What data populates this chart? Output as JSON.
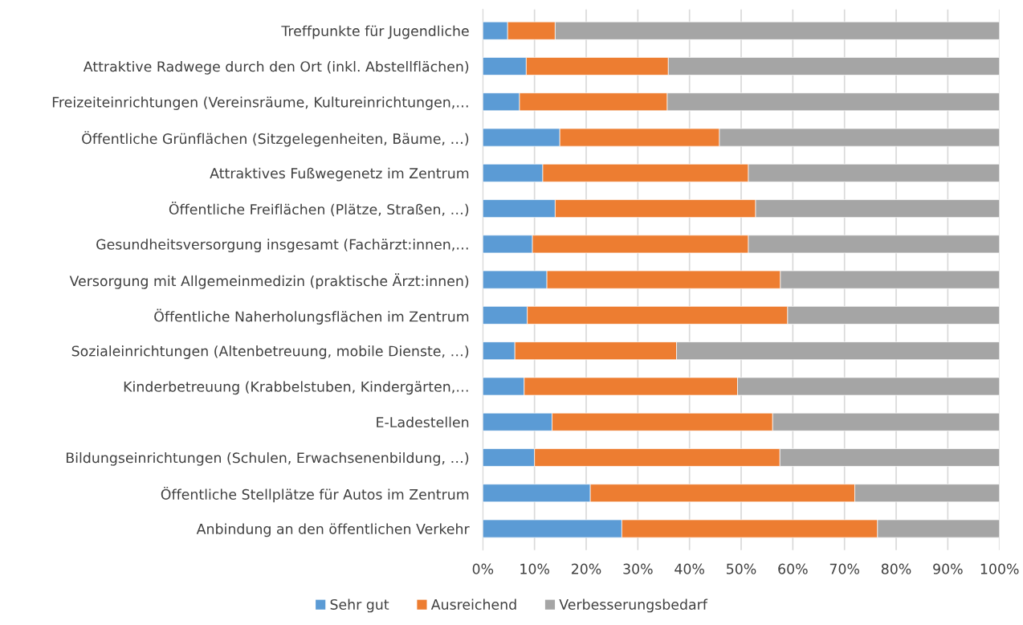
{
  "chart_data": {
    "type": "bar",
    "orientation": "horizontal",
    "stacked": true,
    "categories": [
      "Treffpunkte für Jugendliche",
      "Attraktive Radwege durch den Ort (inkl. Abstellflächen)",
      "Freizeiteinrichtungen (Vereinsräume, Kultureinrichtungen,…",
      "Öffentliche Grünflächen (Sitzgelegenheiten, Bäume, …)",
      "Attraktives Fußwegenetz im Zentrum",
      "Öffentliche Freiflächen (Plätze, Straßen, …)",
      "Gesundheitsversorgung insgesamt (Fachärzt:innen,…",
      "Versorgung mit Allgemeinmedizin (praktische Ärzt:innen)",
      "Öffentliche Naherholungsflächen im Zentrum",
      "Sozialeinrichtungen (Altenbetreuung, mobile Dienste, …)",
      "Kinderbetreuung (Krabbelstuben, Kindergärten,…",
      "E-Ladestellen",
      "Bildungseinrichtungen (Schulen, Erwachsenenbildung, …)",
      "Öffentliche Stellplätze für Autos im Zentrum",
      "Anbindung an den öffentlichen Verkehr"
    ],
    "series": [
      {
        "name": "Sehr gut",
        "color": "#5b9bd5",
        "values": [
          4.8,
          8.4,
          7.1,
          14.9,
          11.6,
          14.0,
          9.6,
          12.4,
          8.6,
          6.2,
          8.0,
          13.4,
          10.0,
          20.8,
          26.9
        ]
      },
      {
        "name": "Ausreichend",
        "color": "#ed7d31",
        "values": [
          9.2,
          27.5,
          28.6,
          30.9,
          39.8,
          38.8,
          41.8,
          45.2,
          50.4,
          31.3,
          41.3,
          42.7,
          47.5,
          51.2,
          49.5
        ]
      },
      {
        "name": "Verbesserungsbedarf",
        "color": "#a5a5a5",
        "values": [
          86.0,
          64.1,
          64.3,
          54.2,
          48.6,
          47.2,
          48.6,
          42.4,
          41.0,
          62.5,
          50.7,
          43.9,
          42.5,
          28.0,
          23.6
        ]
      }
    ],
    "xlim": [
      0,
      100
    ],
    "xticks": [
      {
        "value": 0,
        "label": "0%"
      },
      {
        "value": 10,
        "label": "10%"
      },
      {
        "value": 20,
        "label": "20%"
      },
      {
        "value": 30,
        "label": "30%"
      },
      {
        "value": 40,
        "label": "40%"
      },
      {
        "value": 50,
        "label": "50%"
      },
      {
        "value": 60,
        "label": "60%"
      },
      {
        "value": 70,
        "label": "70%"
      },
      {
        "value": 80,
        "label": "80%"
      },
      {
        "value": 90,
        "label": "90%"
      },
      {
        "value": 100,
        "label": "100%"
      }
    ],
    "grid": "x",
    "legend": "bottom"
  }
}
